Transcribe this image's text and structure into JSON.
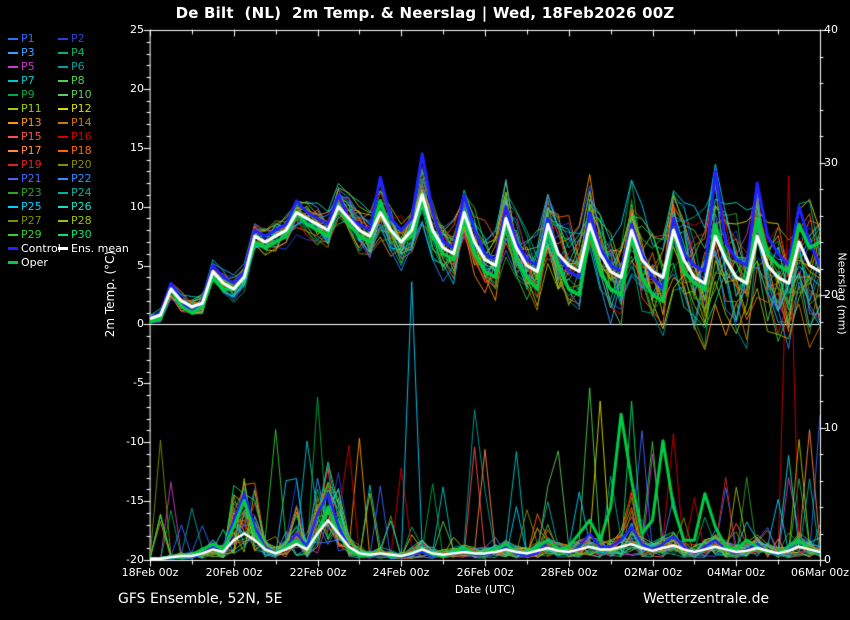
{
  "title": "De Bilt  (NL)  2m Temp. & Neerslag | Wed, 18Feb2026 00Z",
  "footer": {
    "left_text": "GFS Ensemble, 52N, 5E",
    "right_text": "Wetterzentrale.de"
  },
  "legend": {
    "members": [
      {
        "label": "P1",
        "color": "#2e6bff"
      },
      {
        "label": "P2",
        "color": "#2244dd"
      },
      {
        "label": "P3",
        "color": "#3aa0ff"
      },
      {
        "label": "P4",
        "color": "#00b36b"
      },
      {
        "label": "P5",
        "color": "#c93cc9"
      },
      {
        "label": "P6",
        "color": "#00a0a0"
      },
      {
        "label": "P7",
        "color": "#00c8c8"
      },
      {
        "label": "P8",
        "color": "#4fcf4f"
      },
      {
        "label": "P9",
        "color": "#00a944"
      },
      {
        "label": "P10",
        "color": "#62c962"
      },
      {
        "label": "P11",
        "color": "#a4cc00"
      },
      {
        "label": "P12",
        "color": "#d9d900"
      },
      {
        "label": "P13",
        "color": "#ff9900"
      },
      {
        "label": "P14",
        "color": "#cc7a00"
      },
      {
        "label": "P15",
        "color": "#ff5050"
      },
      {
        "label": "P16",
        "color": "#d40000"
      },
      {
        "label": "P17",
        "color": "#ff8844"
      },
      {
        "label": "P18",
        "color": "#ff6600"
      },
      {
        "label": "P19",
        "color": "#e02020"
      },
      {
        "label": "P20",
        "color": "#8a8a00"
      },
      {
        "label": "P21",
        "color": "#4466ff"
      },
      {
        "label": "P22",
        "color": "#2b8fff"
      },
      {
        "label": "P23",
        "color": "#29a329"
      },
      {
        "label": "P24",
        "color": "#00b3a0"
      },
      {
        "label": "P25",
        "color": "#00d2ff"
      },
      {
        "label": "P26",
        "color": "#14e0c8"
      },
      {
        "label": "P27",
        "color": "#7a8f00"
      },
      {
        "label": "P28",
        "color": "#9fbf00"
      },
      {
        "label": "P29",
        "color": "#35cc35"
      },
      {
        "label": "P30",
        "color": "#00e673"
      }
    ],
    "control": {
      "label": "Control",
      "color": "#2222ff"
    },
    "ens_mean": {
      "label": "Ens. mean",
      "color": "#ffffff"
    },
    "oper": {
      "label": "Oper",
      "color": "#00cc44"
    }
  },
  "chart_data": {
    "type": "line",
    "station": "De Bilt (NL)",
    "run": "Wed, 18Feb2026 00Z",
    "legend_position": "top-left",
    "grid": false,
    "x_axis": {
      "label": "Date (UTC)",
      "tick_labels": [
        "18Feb 00z",
        "20Feb 00z",
        "22Feb 00z",
        "24Feb 00z",
        "26Feb 00z",
        "28Feb 00z",
        "02Mar 00z",
        "04Mar 00z",
        "06Mar 00z"
      ],
      "days": 16,
      "points": 65,
      "step_hours": 6
    },
    "y_left": {
      "label": "2m Temp. (°C)",
      "min": -20,
      "max": 25,
      "ticks": [
        25,
        20,
        15,
        10,
        5,
        0,
        -5,
        -10,
        -15,
        -20
      ]
    },
    "y_right": {
      "label": "Neerslag (mm)",
      "min": 0,
      "max": 40,
      "ticks": [
        40,
        30,
        20,
        10,
        0
      ]
    },
    "zero_line_c": 0,
    "series": {
      "ens_mean_temp": [
        0.5,
        0.8,
        3.0,
        2.0,
        1.5,
        1.8,
        4.5,
        3.5,
        3.0,
        4.0,
        7.5,
        7.0,
        7.5,
        8.0,
        9.5,
        9.0,
        8.5,
        8.0,
        10.0,
        9.0,
        8.0,
        7.5,
        9.5,
        8.0,
        7.0,
        8.0,
        11.0,
        8.0,
        6.5,
        6.0,
        9.5,
        7.0,
        5.5,
        5.0,
        9.0,
        6.5,
        5.0,
        4.5,
        8.5,
        6.0,
        5.0,
        4.5,
        8.5,
        6.0,
        4.5,
        4.0,
        8.0,
        5.5,
        4.5,
        4.0,
        8.0,
        5.5,
        4.0,
        3.5,
        7.5,
        5.5,
        4.0,
        3.5,
        7.5,
        5.0,
        4.0,
        3.5,
        7.0,
        5.0,
        4.5
      ],
      "control_temp": [
        0.5,
        1.0,
        3.5,
        2.0,
        1.0,
        2.0,
        5.0,
        4.0,
        3.5,
        4.5,
        8.0,
        7.5,
        8.0,
        8.5,
        10.5,
        9.5,
        9.0,
        8.5,
        11.0,
        9.0,
        8.5,
        8.0,
        12.5,
        9.0,
        8.0,
        9.0,
        14.5,
        9.5,
        7.0,
        6.5,
        11.0,
        8.0,
        6.0,
        5.5,
        10.0,
        7.0,
        5.5,
        5.0,
        9.0,
        6.0,
        4.5,
        4.0,
        9.5,
        6.5,
        5.0,
        4.5,
        8.5,
        6.0,
        4.0,
        3.0,
        9.0,
        6.0,
        5.0,
        4.5,
        13.0,
        7.0,
        5.5,
        5.0,
        12.0,
        7.5,
        6.0,
        5.0,
        10.0,
        7.0,
        5.0
      ],
      "oper_temp": [
        0.2,
        0.5,
        3.0,
        1.5,
        1.0,
        1.5,
        4.0,
        3.0,
        3.0,
        4.0,
        7.0,
        6.5,
        7.0,
        7.5,
        9.5,
        8.5,
        8.0,
        7.5,
        10.0,
        8.5,
        7.5,
        7.0,
        10.5,
        8.0,
        7.0,
        7.5,
        10.5,
        7.5,
        6.0,
        5.5,
        9.0,
        6.0,
        4.5,
        4.0,
        9.0,
        5.5,
        4.0,
        3.0,
        8.0,
        5.0,
        3.0,
        2.5,
        8.0,
        4.5,
        3.0,
        2.5,
        7.5,
        4.0,
        2.5,
        2.0,
        8.0,
        4.5,
        3.5,
        3.0,
        8.5,
        5.5,
        4.0,
        3.5,
        9.0,
        6.0,
        5.0,
        4.5,
        8.5,
        6.5,
        7.0
      ],
      "ens_mean_precip": [
        0.1,
        0.1,
        0.2,
        0.3,
        0.3,
        0.5,
        0.8,
        0.6,
        1.5,
        2.0,
        1.5,
        0.8,
        0.5,
        0.8,
        1.2,
        0.8,
        2.0,
        3.0,
        2.0,
        1.0,
        0.5,
        0.4,
        0.5,
        0.4,
        0.3,
        0.5,
        0.8,
        0.5,
        0.4,
        0.5,
        0.6,
        0.5,
        0.5,
        0.6,
        0.8,
        0.6,
        0.5,
        0.7,
        0.9,
        0.7,
        0.6,
        0.8,
        1.0,
        0.8,
        0.8,
        1.0,
        1.2,
        0.9,
        0.7,
        0.9,
        1.1,
        0.8,
        0.6,
        0.8,
        1.0,
        0.8,
        0.6,
        0.7,
        0.9,
        0.7,
        0.5,
        0.7,
        1.0,
        0.8,
        0.6
      ],
      "control_precip": [
        0.0,
        0.0,
        0.1,
        0.2,
        0.2,
        0.5,
        1.0,
        0.8,
        3.0,
        5.0,
        2.5,
        1.0,
        0.5,
        1.0,
        2.0,
        1.0,
        3.5,
        5.0,
        2.5,
        1.0,
        0.3,
        0.2,
        0.4,
        0.3,
        0.2,
        0.4,
        0.6,
        0.3,
        0.3,
        0.5,
        0.8,
        0.4,
        0.4,
        0.6,
        1.0,
        0.5,
        0.3,
        0.5,
        1.5,
        0.8,
        0.5,
        1.0,
        2.0,
        1.0,
        1.0,
        1.5,
        2.5,
        1.2,
        0.8,
        1.2,
        1.8,
        1.0,
        0.5,
        1.0,
        1.5,
        0.8,
        0.5,
        0.8,
        1.2,
        0.6,
        0.4,
        0.8,
        1.5,
        0.8,
        0.5
      ],
      "oper_precip": [
        0.0,
        0.1,
        0.2,
        0.2,
        0.3,
        0.8,
        1.2,
        0.8,
        2.5,
        4.5,
        2.0,
        0.8,
        0.5,
        1.0,
        1.5,
        0.8,
        2.0,
        4.0,
        2.0,
        0.8,
        0.3,
        0.3,
        0.5,
        0.3,
        0.3,
        0.5,
        0.8,
        0.4,
        0.3,
        0.6,
        0.9,
        0.5,
        0.5,
        0.8,
        1.2,
        0.6,
        0.5,
        1.0,
        1.5,
        0.8,
        1.0,
        2.0,
        3.0,
        1.5,
        4.0,
        11.0,
        6.0,
        2.0,
        3.0,
        9.0,
        4.0,
        1.5,
        1.5,
        5.0,
        2.5,
        1.0,
        0.8,
        1.5,
        1.0,
        0.6,
        0.5,
        1.0,
        1.5,
        0.8,
        0.6
      ]
    },
    "ensemble": {
      "count": 30,
      "spread_start_c": 0.5,
      "spread_end_c": 5.0,
      "forced_precip_spikes": [
        {
          "member": 24,
          "k": 25,
          "mm": 21
        },
        {
          "member": 15,
          "k": 61,
          "mm": 29
        },
        {
          "member": 7,
          "k": 42,
          "mm": 13
        },
        {
          "member": 11,
          "k": 43,
          "mm": 12
        },
        {
          "member": 29,
          "k": 46,
          "mm": 12
        }
      ]
    }
  }
}
